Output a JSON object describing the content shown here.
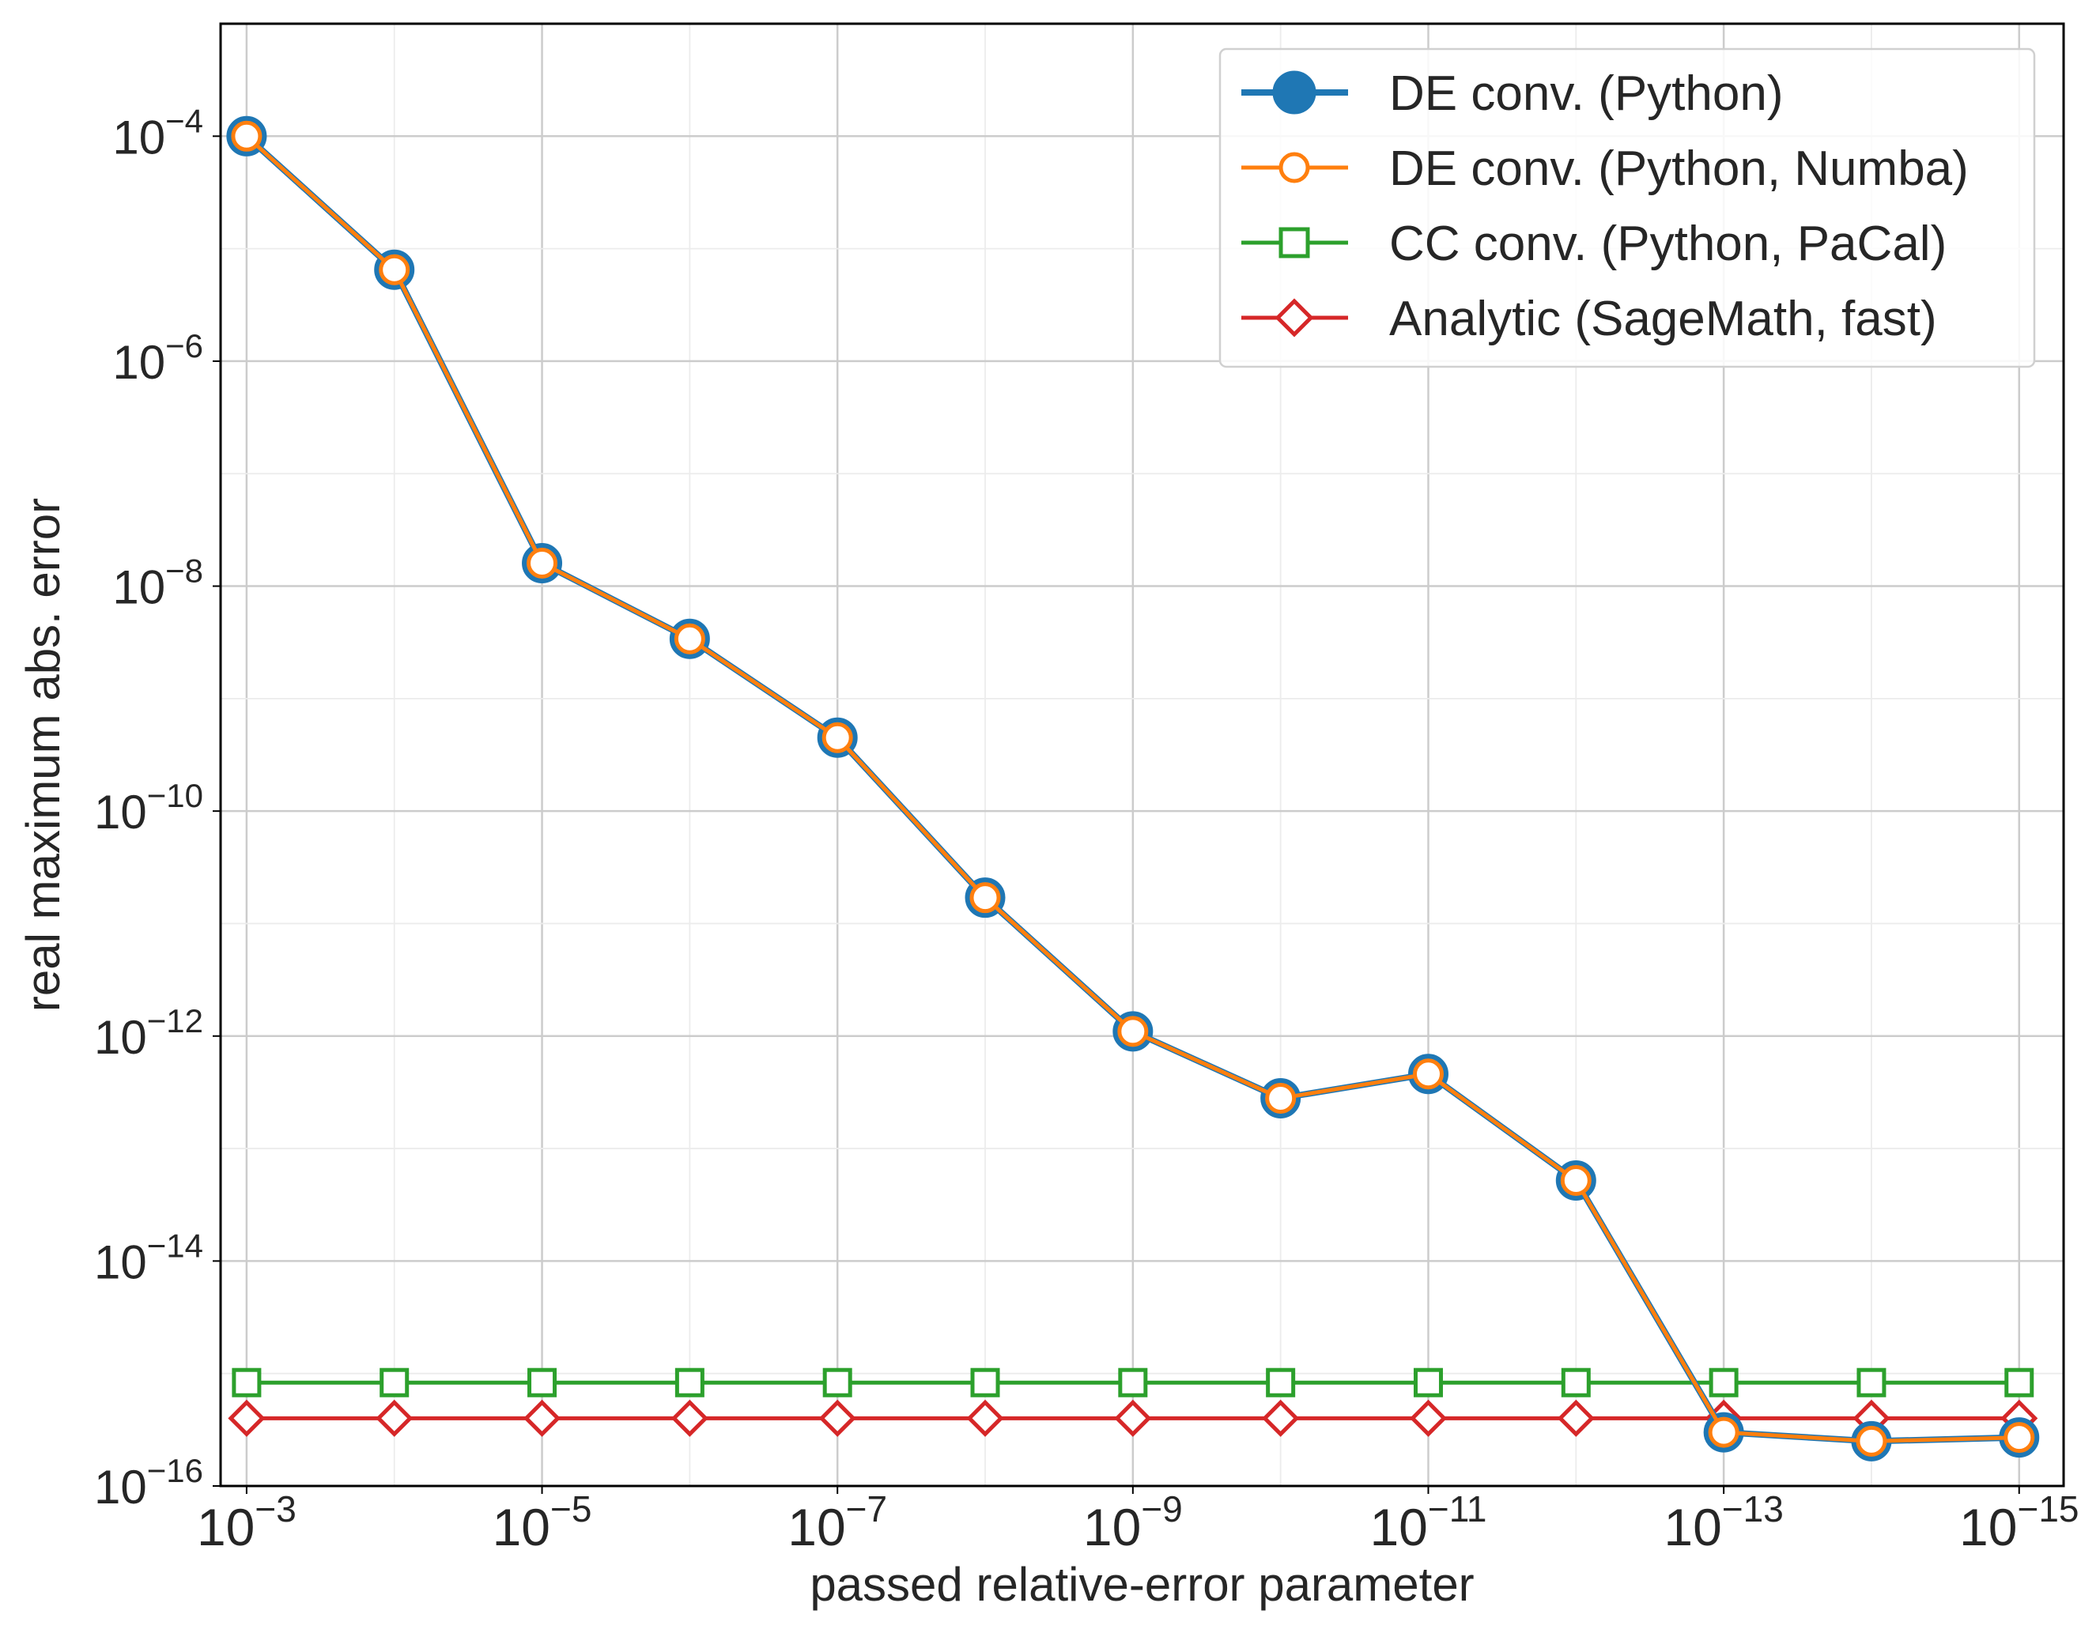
{
  "chart_data": {
    "type": "line",
    "xlabel": "passed relative-error parameter",
    "ylabel": "real maximum abs. error",
    "xscale": "log",
    "yscale": "log",
    "x_inverted": true,
    "grid": true,
    "legend_position": "top-right",
    "xlim": [
      0.0015,
      5e-16
    ],
    "ylim": [
      1e-16,
      0.001
    ],
    "x": [
      0.001,
      0.0001,
      1e-05,
      1e-06,
      1e-07,
      1e-08,
      1e-09,
      1e-10,
      1e-11,
      1e-12,
      1e-13,
      1e-14,
      1e-15
    ],
    "x_ticks": [
      {
        "value": 0.001,
        "base": "10",
        "exp": "−3"
      },
      {
        "value": 1e-05,
        "base": "10",
        "exp": "−5"
      },
      {
        "value": 1e-07,
        "base": "10",
        "exp": "−7"
      },
      {
        "value": 1e-09,
        "base": "10",
        "exp": "−9"
      },
      {
        "value": 1e-11,
        "base": "10",
        "exp": "−11"
      },
      {
        "value": 1e-13,
        "base": "10",
        "exp": "−13"
      },
      {
        "value": 1e-15,
        "base": "10",
        "exp": "−15"
      }
    ],
    "y_ticks": [
      {
        "value": 0.0001,
        "base": "10",
        "exp": "−4"
      },
      {
        "value": 1e-06,
        "base": "10",
        "exp": "−6"
      },
      {
        "value": 1e-08,
        "base": "10",
        "exp": "−8"
      },
      {
        "value": 1e-10,
        "base": "10",
        "exp": "−10"
      },
      {
        "value": 1e-12,
        "base": "10",
        "exp": "−12"
      },
      {
        "value": 1e-14,
        "base": "10",
        "exp": "−14"
      },
      {
        "value": 1e-16,
        "base": "10",
        "exp": "−16"
      }
    ],
    "series": [
      {
        "name": "DE conv. (Python)",
        "color": "#1f77b4",
        "marker": "filled-circle",
        "values": [
          0.0001,
          6.5e-06,
          1.6e-08,
          3.4e-09,
          4.5e-10,
          1.7e-11,
          1.1e-12,
          2.8e-13,
          4.6e-13,
          5.2e-14,
          3e-16,
          2.5e-16,
          2.7e-16
        ]
      },
      {
        "name": "DE conv. (Python, Numba)",
        "color": "#ff7f0e",
        "marker": "open-circle",
        "values": [
          0.0001,
          6.5e-06,
          1.6e-08,
          3.4e-09,
          4.5e-10,
          1.7e-11,
          1.1e-12,
          2.8e-13,
          4.6e-13,
          5.2e-14,
          3e-16,
          2.5e-16,
          2.7e-16
        ]
      },
      {
        "name": "CC conv. (Python, PaCal)",
        "color": "#2ca02c",
        "marker": "open-square",
        "values": [
          8.3e-16,
          8.3e-16,
          8.3e-16,
          8.3e-16,
          8.3e-16,
          8.3e-16,
          8.3e-16,
          8.3e-16,
          8.3e-16,
          8.3e-16,
          8.3e-16,
          8.3e-16,
          8.3e-16
        ]
      },
      {
        "name": "Analytic (SageMath, fast)",
        "color": "#d62728",
        "marker": "open-diamond",
        "values": [
          4e-16,
          4e-16,
          4e-16,
          4e-16,
          4e-16,
          4e-16,
          4e-16,
          4e-16,
          4e-16,
          4e-16,
          4e-16,
          4e-16,
          4e-16
        ]
      }
    ]
  }
}
